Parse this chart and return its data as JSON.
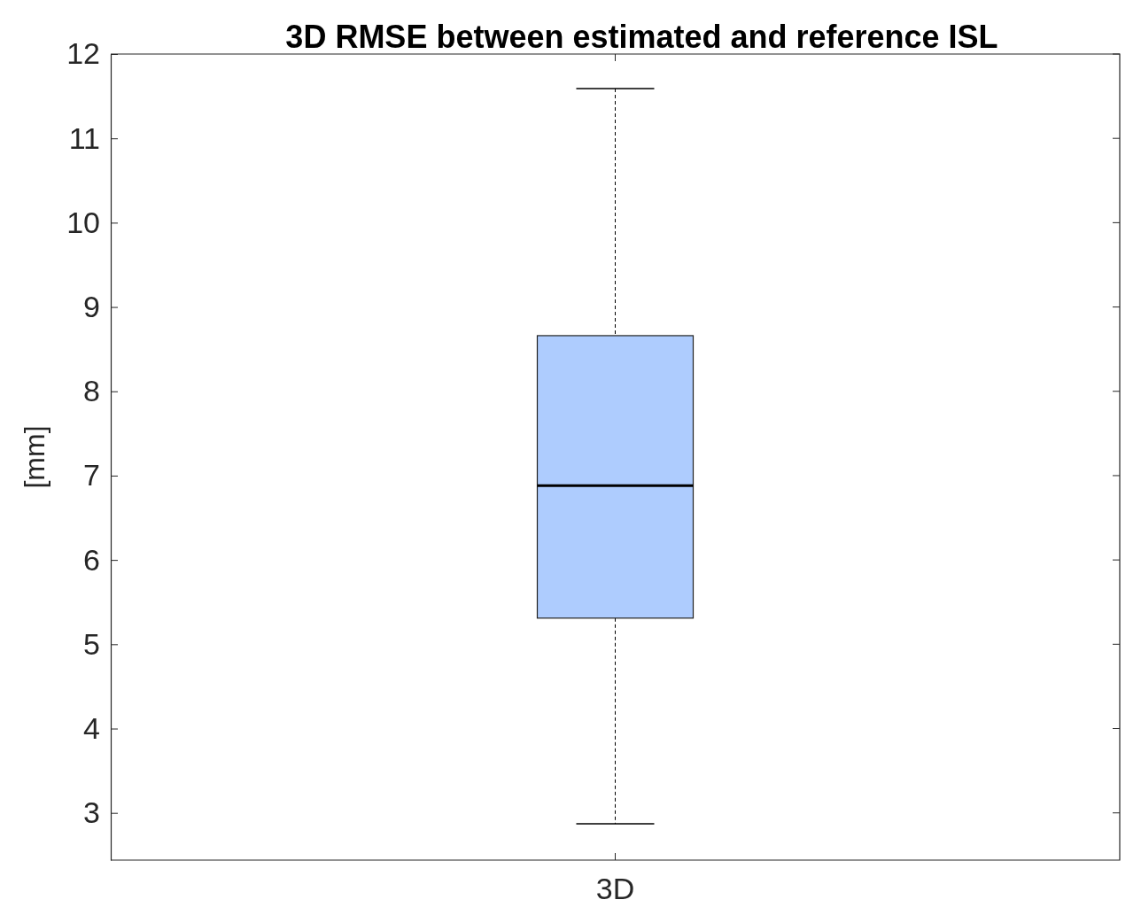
{
  "chart_data": {
    "type": "box",
    "title": "3D RMSE between estimated and reference ISL",
    "ylabel": "[mm]",
    "categories": [
      "3D"
    ],
    "series": [
      {
        "color": "#aeccfe",
        "boxes": [
          {
            "low": 2.87,
            "q1": 5.31,
            "median": 6.88,
            "q3": 8.66,
            "high": 11.59
          }
        ]
      }
    ],
    "ylim": [
      2.44,
      12
    ],
    "yticks": [
      3,
      4,
      5,
      6,
      7,
      8,
      9,
      10,
      11,
      12
    ],
    "grid": false
  }
}
